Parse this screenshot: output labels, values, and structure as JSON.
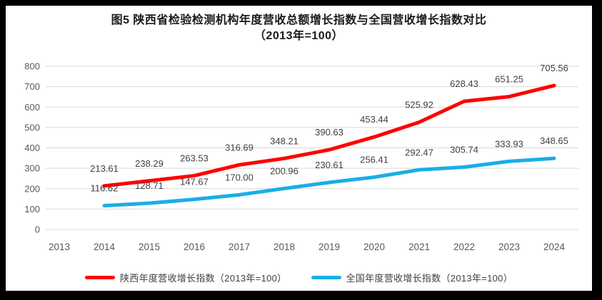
{
  "figure": {
    "title_line1": "图5  陕西省检验检测机构年度营收总额增长指数与全国营收增长指数对比",
    "title_line2": "（2013年=100）"
  },
  "colors": {
    "shaanxi_line": "#fe0000",
    "national_line": "#1aaee5",
    "gridline": "#d9d9d9",
    "axis_text": "#595959",
    "data_label_text": "#404040",
    "frame": "#000000"
  },
  "chart_data": {
    "type": "line",
    "title": "图5 陕西省检验检测机构年度营收总额增长指数与全国营收增长指数对比（2013年=100）",
    "categories": [
      "2013",
      "2014",
      "2015",
      "2016",
      "2017",
      "2018",
      "2019",
      "2020",
      "2021",
      "2022",
      "2023",
      "2024"
    ],
    "series": [
      {
        "name": "陕西年度营收增长指数（2013年=100）",
        "color": "#fe0000",
        "values": [
          null,
          213.61,
          238.29,
          263.53,
          316.69,
          348.21,
          390.63,
          453.44,
          525.92,
          628.43,
          651.25,
          705.56
        ]
      },
      {
        "name": "全国年度营收增长指数（2013年=100）",
        "color": "#1aaee5",
        "values": [
          null,
          116.62,
          128.71,
          147.67,
          170.0,
          200.96,
          230.61,
          256.41,
          292.47,
          305.74,
          333.93,
          348.65
        ]
      }
    ],
    "xlabel": "",
    "ylabel": "",
    "ylim": [
      0,
      800
    ],
    "ytick_step": 100,
    "grid": true,
    "legend_position": "bottom",
    "data_labels": true,
    "data_label_decimals": 2
  }
}
